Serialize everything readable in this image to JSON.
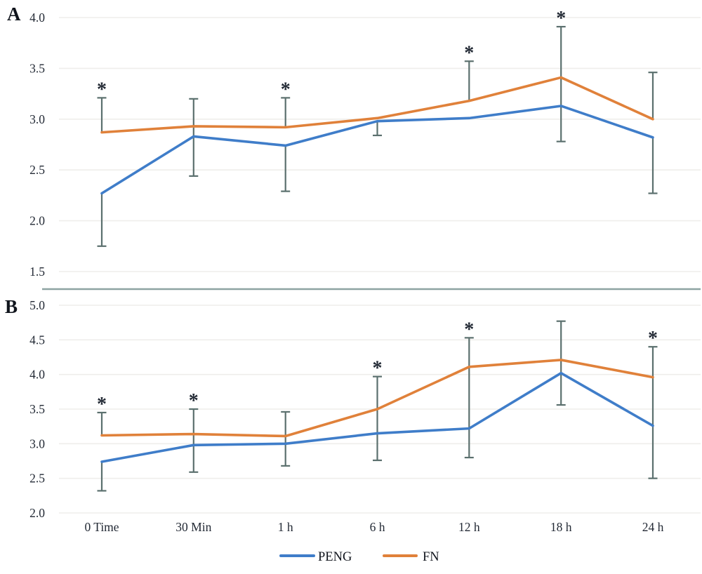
{
  "figure": {
    "background": "#ffffff",
    "significance_marker": "*"
  },
  "colors": {
    "peng": "#3f7dc9",
    "fn": "#e0813a",
    "error_bar": "#5b706e",
    "gridline": "#efeeeb",
    "divider": "#8da4a2",
    "text": "#232a35"
  },
  "legend": {
    "items": [
      {
        "label": "PENG",
        "color": "#3f7dc9"
      },
      {
        "label": "FN",
        "color": "#e0813a"
      }
    ]
  },
  "chart_data": [
    {
      "type": "line",
      "panel_label": "A",
      "categories": [
        "0 Time",
        "30 Min",
        "1 h",
        "6 h",
        "12 h",
        "18 h",
        "24 h"
      ],
      "series": [
        {
          "name": "PENG",
          "color": "#3f7dc9",
          "values": [
            2.27,
            2.83,
            2.74,
            2.98,
            3.01,
            3.13,
            2.82
          ]
        },
        {
          "name": "FN",
          "color": "#e0813a",
          "values": [
            2.87,
            2.93,
            2.92,
            3.01,
            3.18,
            3.41,
            3.0
          ]
        }
      ],
      "error_whiskers": [
        [
          {
            "hi": 3.21,
            "lo": 2.87,
            "cap_hi": true,
            "cap_lo": false
          },
          {
            "hi": 2.27,
            "lo": 1.75,
            "cap_hi": false,
            "cap_lo": true
          }
        ],
        [
          {
            "hi": 3.2,
            "lo": 2.44,
            "cap_hi": true,
            "cap_lo": true
          }
        ],
        [
          {
            "hi": 3.21,
            "lo": 2.92,
            "cap_hi": true,
            "cap_lo": false
          },
          {
            "hi": 2.74,
            "lo": 2.29,
            "cap_hi": false,
            "cap_lo": true
          }
        ],
        [
          {
            "hi": 2.98,
            "lo": 2.84,
            "cap_hi": false,
            "cap_lo": true
          }
        ],
        [
          {
            "hi": 3.57,
            "lo": 3.18,
            "cap_hi": true,
            "cap_lo": false
          }
        ],
        [
          {
            "hi": 3.91,
            "lo": 2.78,
            "cap_hi": true,
            "cap_lo": true
          }
        ],
        [
          {
            "hi": 3.46,
            "lo": 3.0,
            "cap_hi": true,
            "cap_lo": false
          },
          {
            "hi": 2.82,
            "lo": 2.27,
            "cap_hi": false,
            "cap_lo": true
          }
        ]
      ],
      "significant": [
        true,
        false,
        true,
        false,
        true,
        true,
        false
      ],
      "ylim": [
        1.5,
        4.0
      ],
      "yticks": [
        "4.0",
        "3.5",
        "3.0",
        "2.5",
        "2.0",
        "1.5"
      ],
      "grid": true,
      "show_x_labels": false,
      "legend_position": "none"
    },
    {
      "type": "line",
      "panel_label": "B",
      "categories": [
        "0 Time",
        "30 Min",
        "1 h",
        "6 h",
        "12 h",
        "18 h",
        "24 h"
      ],
      "series": [
        {
          "name": "PENG",
          "color": "#3f7dc9",
          "values": [
            2.74,
            2.98,
            3.0,
            3.15,
            3.22,
            4.02,
            3.26
          ]
        },
        {
          "name": "FN",
          "color": "#e0813a",
          "values": [
            3.12,
            3.14,
            3.11,
            3.5,
            4.11,
            4.21,
            3.96
          ]
        }
      ],
      "error_whiskers": [
        [
          {
            "hi": 3.45,
            "lo": 3.12,
            "cap_hi": true,
            "cap_lo": false
          },
          {
            "hi": 2.74,
            "lo": 2.32,
            "cap_hi": false,
            "cap_lo": true
          }
        ],
        [
          {
            "hi": 3.5,
            "lo": 2.59,
            "cap_hi": true,
            "cap_lo": true
          }
        ],
        [
          {
            "hi": 3.46,
            "lo": 2.68,
            "cap_hi": true,
            "cap_lo": true
          }
        ],
        [
          {
            "hi": 3.97,
            "lo": 2.76,
            "cap_hi": true,
            "cap_lo": true
          }
        ],
        [
          {
            "hi": 4.53,
            "lo": 2.8,
            "cap_hi": true,
            "cap_lo": true
          }
        ],
        [
          {
            "hi": 4.77,
            "lo": 3.56,
            "cap_hi": true,
            "cap_lo": true
          }
        ],
        [
          {
            "hi": 4.4,
            "lo": 2.5,
            "cap_hi": true,
            "cap_lo": true
          }
        ]
      ],
      "significant": [
        true,
        true,
        false,
        true,
        true,
        false,
        true
      ],
      "ylim": [
        2.0,
        5.0
      ],
      "yticks": [
        "5.0",
        "4.5",
        "4.0",
        "3.5",
        "3.0",
        "2.5",
        "2.0"
      ],
      "grid": true,
      "show_x_labels": true,
      "legend_position": "bottom"
    }
  ]
}
